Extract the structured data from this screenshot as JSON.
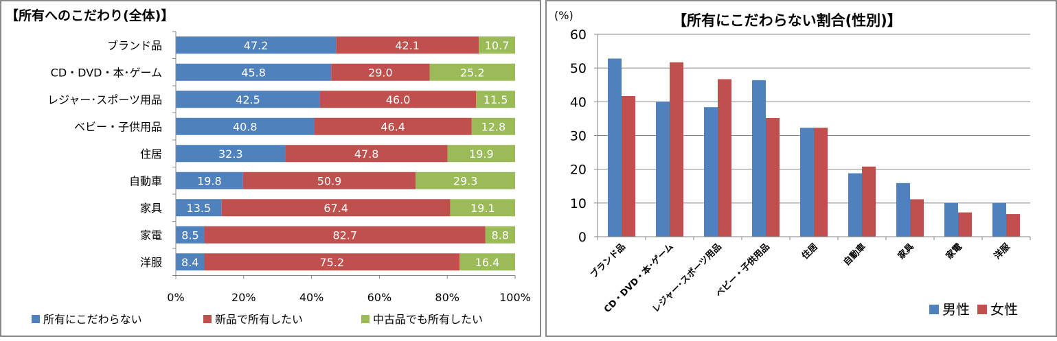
{
  "chart_data": [
    {
      "type": "bar",
      "orientation": "horizontal",
      "stacked": "percent",
      "title": "【所有へのこだわり(全体)】",
      "categories": [
        "ブランド品",
        "CD・DVD・本･ゲーム",
        "レジャー･スポーツ用品",
        "ベビー・子供用品",
        "住居",
        "自動車",
        "家具",
        "家電",
        "洋服"
      ],
      "series": [
        {
          "name": "所有にこだわらない",
          "color": "#4f81bd",
          "values": [
            47.2,
            45.8,
            42.5,
            40.8,
            32.3,
            19.8,
            13.5,
            8.5,
            8.4
          ],
          "labels": [
            "47.2",
            "45.8",
            "42.5",
            "40.8",
            "32.3",
            "19.8",
            "13.5",
            "8.5",
            "8.4"
          ]
        },
        {
          "name": "新品で所有したい",
          "color": "#c0504d",
          "values": [
            42.1,
            29.0,
            46.0,
            46.4,
            47.8,
            50.9,
            67.4,
            82.7,
            75.2
          ],
          "labels": [
            "42.1",
            "29.0",
            "46.0",
            "46.4",
            "47.8",
            "50.9",
            "67.4",
            "82.7",
            "75.2"
          ]
        },
        {
          "name": "中古品でも所有したい",
          "color": "#9bbb59",
          "values": [
            10.7,
            25.2,
            11.5,
            12.8,
            19.9,
            29.3,
            19.1,
            8.8,
            16.4
          ],
          "labels": [
            "10.7",
            "25.2",
            "11.5",
            "12.8",
            "19.9",
            "29.3",
            "19.1",
            "8.8",
            "16.4"
          ]
        }
      ],
      "xlim": [
        0,
        100
      ],
      "x_ticks": [
        "0%",
        "20%",
        "40%",
        "60%",
        "80%",
        "100%"
      ],
      "legend_position": "bottom",
      "grid": false
    },
    {
      "type": "bar",
      "orientation": "vertical",
      "title": "【所有にこだわらない割合(性別)】",
      "ylabel": "(%)",
      "categories": [
        "ブランド品",
        "CD・DVD・本･ゲーム",
        "レジャー･スポーツ用品",
        "ベビー・子供用品",
        "住居",
        "自動車",
        "家具",
        "家電",
        "洋服"
      ],
      "series": [
        {
          "name": "男性",
          "color": "#4f81bd",
          "values": [
            52.8,
            40.0,
            38.4,
            46.4,
            32.3,
            18.8,
            15.9,
            10.0,
            10.0
          ]
        },
        {
          "name": "女性",
          "color": "#c0504d",
          "values": [
            41.7,
            51.7,
            46.7,
            35.2,
            32.3,
            20.8,
            11.1,
            7.2,
            6.7
          ]
        }
      ],
      "ylim": [
        0,
        60
      ],
      "y_ticks": [
        "0",
        "10",
        "20",
        "30",
        "40",
        "50",
        "60"
      ],
      "legend_position": "bottom-right",
      "grid": true
    }
  ]
}
